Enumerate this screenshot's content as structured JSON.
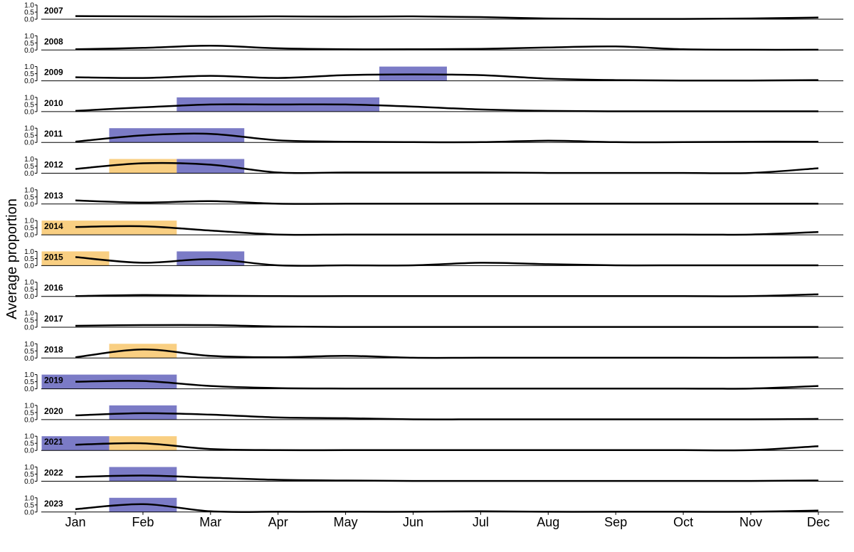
{
  "chart_data": {
    "type": "line",
    "ylabel": "Average proportion",
    "xlabel": "",
    "ylim": [
      0,
      1
    ],
    "yticks": [
      "1.0",
      "0.5",
      "0.0"
    ],
    "grid": false,
    "months": [
      "Jan",
      "Feb",
      "Mar",
      "Apr",
      "May",
      "Jun",
      "Jul",
      "Aug",
      "Sep",
      "Oct",
      "Nov",
      "Dec"
    ],
    "colors": {
      "blue_highlight": "#7b7bc6",
      "orange_highlight": "#f9cf82",
      "line": "#000000"
    },
    "years": [
      {
        "year": "2007",
        "values": [
          0.22,
          0.2,
          0.18,
          0.2,
          0.18,
          0.2,
          0.15,
          0.05,
          0.02,
          0.02,
          0.05,
          0.12
        ],
        "highlights": []
      },
      {
        "year": "2008",
        "values": [
          0.05,
          0.15,
          0.3,
          0.12,
          0.05,
          0.05,
          0.08,
          0.18,
          0.25,
          0.05,
          0.02,
          0.02
        ],
        "highlights": []
      },
      {
        "year": "2009",
        "values": [
          0.25,
          0.2,
          0.35,
          0.2,
          0.4,
          0.45,
          0.4,
          0.15,
          0.05,
          0.02,
          0.02,
          0.05
        ],
        "highlights": [
          {
            "start": 5.5,
            "end": 6.5,
            "color": "blue"
          }
        ]
      },
      {
        "year": "2010",
        "values": [
          0.05,
          0.3,
          0.5,
          0.5,
          0.5,
          0.35,
          0.15,
          0.05,
          0.02,
          0.02,
          0.02,
          0.02
        ],
        "highlights": [
          {
            "start": 2.5,
            "end": 5.5,
            "color": "blue"
          }
        ]
      },
      {
        "year": "2011",
        "values": [
          0.05,
          0.5,
          0.6,
          0.15,
          0.05,
          0.02,
          0.02,
          0.12,
          0.02,
          0.02,
          0.05,
          0.05
        ],
        "highlights": [
          {
            "start": 1.5,
            "end": 3.5,
            "color": "blue"
          }
        ]
      },
      {
        "year": "2012",
        "values": [
          0.3,
          0.7,
          0.6,
          0.05,
          0.05,
          0.05,
          0.05,
          0.02,
          0.02,
          0.02,
          0.02,
          0.35
        ],
        "highlights": [
          {
            "start": 1.5,
            "end": 2.5,
            "color": "orange"
          },
          {
            "start": 2.5,
            "end": 3.5,
            "color": "blue"
          }
        ]
      },
      {
        "year": "2013",
        "values": [
          0.25,
          0.1,
          0.2,
          0.02,
          0.02,
          0.02,
          0.02,
          0.02,
          0.02,
          0.02,
          0.02,
          0.02
        ],
        "highlights": []
      },
      {
        "year": "2014",
        "values": [
          0.55,
          0.6,
          0.3,
          0.02,
          0.02,
          0.02,
          0.02,
          0.02,
          0.02,
          0.02,
          0.02,
          0.2
        ],
        "highlights": [
          {
            "start": 0.5,
            "end": 2.5,
            "color": "orange"
          }
        ]
      },
      {
        "year": "2015",
        "values": [
          0.6,
          0.2,
          0.45,
          0.02,
          0.02,
          0.02,
          0.2,
          0.1,
          0.02,
          0.02,
          0.02,
          0.02
        ],
        "highlights": [
          {
            "start": 0.5,
            "end": 1.5,
            "color": "orange"
          },
          {
            "start": 2.5,
            "end": 3.5,
            "color": "blue"
          }
        ]
      },
      {
        "year": "2016",
        "values": [
          0.02,
          0.1,
          0.05,
          0.02,
          0.02,
          0.02,
          0.02,
          0.02,
          0.02,
          0.02,
          0.02,
          0.15
        ],
        "highlights": []
      },
      {
        "year": "2017",
        "values": [
          0.1,
          0.15,
          0.15,
          0.05,
          0.02,
          0.02,
          0.02,
          0.02,
          0.02,
          0.02,
          0.02,
          0.02
        ],
        "highlights": []
      },
      {
        "year": "2018",
        "values": [
          0.05,
          0.6,
          0.15,
          0.05,
          0.15,
          0.02,
          0.02,
          0.02,
          0.02,
          0.02,
          0.02,
          0.05
        ],
        "highlights": [
          {
            "start": 1.5,
            "end": 2.5,
            "color": "orange"
          }
        ]
      },
      {
        "year": "2019",
        "values": [
          0.5,
          0.55,
          0.2,
          0.05,
          0.02,
          0.02,
          0.02,
          0.02,
          0.02,
          0.02,
          0.02,
          0.2
        ],
        "highlights": [
          {
            "start": 0.5,
            "end": 2.5,
            "color": "blue"
          }
        ]
      },
      {
        "year": "2020",
        "values": [
          0.3,
          0.45,
          0.35,
          0.15,
          0.1,
          0.02,
          0.02,
          0.02,
          0.02,
          0.02,
          0.02,
          0.05
        ],
        "highlights": [
          {
            "start": 1.5,
            "end": 2.5,
            "color": "blue"
          }
        ]
      },
      {
        "year": "2021",
        "values": [
          0.4,
          0.5,
          0.1,
          0.02,
          0.02,
          0.02,
          0.02,
          0.02,
          0.02,
          0.02,
          0.02,
          0.3
        ],
        "highlights": [
          {
            "start": 0.5,
            "end": 1.5,
            "color": "blue"
          },
          {
            "start": 1.5,
            "end": 2.5,
            "color": "orange"
          }
        ]
      },
      {
        "year": "2022",
        "values": [
          0.3,
          0.4,
          0.25,
          0.1,
          0.05,
          0.02,
          0.02,
          0.02,
          0.02,
          0.02,
          0.02,
          0.05
        ],
        "highlights": [
          {
            "start": 1.5,
            "end": 2.5,
            "color": "blue"
          }
        ]
      },
      {
        "year": "2023",
        "values": [
          0.2,
          0.55,
          0.05,
          0.02,
          0.02,
          0.02,
          0.05,
          0.02,
          0.02,
          0.02,
          0.02,
          0.1
        ],
        "highlights": [
          {
            "start": 1.5,
            "end": 2.5,
            "color": "blue"
          }
        ]
      }
    ]
  }
}
